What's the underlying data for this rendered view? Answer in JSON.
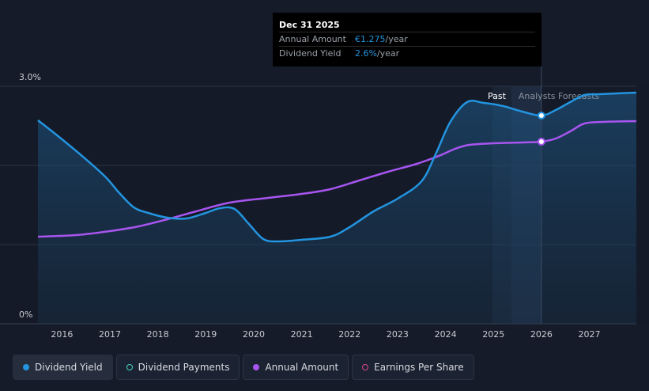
{
  "tooltip": {
    "date": "Dec 31 2025",
    "rows": [
      {
        "label": "Annual Amount",
        "value": "€1.275",
        "suffix": "/year"
      },
      {
        "label": "Dividend Yield",
        "value": "2.6%",
        "suffix": "/year"
      }
    ]
  },
  "legend": [
    {
      "label": "Dividend Yield",
      "color": "#2394df",
      "filled": true,
      "active": true
    },
    {
      "label": "Dividend Payments",
      "color": "#49d6c4",
      "filled": false,
      "active": false
    },
    {
      "label": "Annual Amount",
      "color": "#a855f0",
      "filled": true,
      "active": false
    },
    {
      "label": "Earnings Per Share",
      "color": "#e0468e",
      "filled": false,
      "active": false
    }
  ],
  "chart_data": {
    "type": "line",
    "ytick_labels": [
      "3.0%",
      "0%"
    ],
    "ylim": [
      0,
      3.0
    ],
    "xlim": [
      2015.5,
      2027.98
    ],
    "xticks": [
      2016,
      2017,
      2018,
      2019,
      2020,
      2021,
      2022,
      2023,
      2024,
      2025,
      2026,
      2027
    ],
    "region_labels": {
      "past": "Past",
      "forecast": "Analysts Forecasts"
    },
    "marker_x": 2026.0,
    "series": [
      {
        "name": "Dividend Yield",
        "color": "#2394df",
        "x": [
          2015.5,
          2015.9,
          2016.4,
          2016.9,
          2017.2,
          2017.5,
          2017.8,
          2018.2,
          2018.6,
          2019.0,
          2019.3,
          2019.6,
          2019.9,
          2020.2,
          2020.5,
          2021.0,
          2021.6,
          2022.0,
          2022.5,
          2023.0,
          2023.5,
          2023.8,
          2024.1,
          2024.45,
          2024.8,
          2025.2,
          2025.6,
          2026.0,
          2026.3,
          2026.6,
          2026.9,
          2027.2,
          2027.98
        ],
        "y": [
          2.57,
          2.38,
          2.13,
          1.86,
          1.65,
          1.47,
          1.4,
          1.34,
          1.33,
          1.4,
          1.46,
          1.45,
          1.26,
          1.07,
          1.04,
          1.06,
          1.1,
          1.22,
          1.42,
          1.58,
          1.8,
          2.15,
          2.55,
          2.8,
          2.79,
          2.75,
          2.68,
          2.63,
          2.7,
          2.8,
          2.89,
          2.9,
          2.92
        ]
      },
      {
        "name": "Annual Amount",
        "color": "#a855f0",
        "x": [
          2015.5,
          2016.3,
          2017.0,
          2017.6,
          2018.2,
          2018.8,
          2019.5,
          2020.3,
          2021.0,
          2021.6,
          2022.2,
          2022.8,
          2023.4,
          2023.9,
          2024.2,
          2024.5,
          2025.0,
          2025.6,
          2026.0,
          2026.3,
          2026.6,
          2026.9,
          2027.3,
          2027.98
        ],
        "y": [
          1.1,
          1.12,
          1.17,
          1.23,
          1.32,
          1.42,
          1.53,
          1.59,
          1.64,
          1.7,
          1.81,
          1.92,
          2.02,
          2.13,
          2.21,
          2.26,
          2.28,
          2.29,
          2.3,
          2.34,
          2.43,
          2.53,
          2.55,
          2.56
        ]
      }
    ]
  }
}
